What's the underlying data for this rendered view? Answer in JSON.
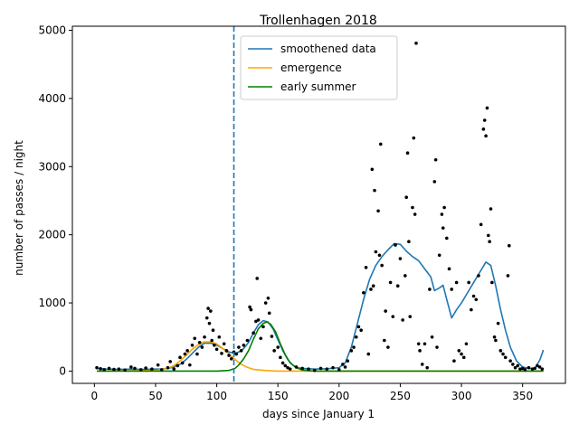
{
  "chart_data": {
    "type": "scatter",
    "title": "Trollenhagen 2018",
    "xlabel": "days since January 1",
    "ylabel": "number of passes / night",
    "xlim": [
      -18,
      385
    ],
    "ylim": [
      -180,
      5060
    ],
    "xticks": [
      0,
      50,
      100,
      150,
      200,
      250,
      300,
      350
    ],
    "yticks": [
      0,
      1000,
      2000,
      3000,
      4000,
      5000
    ],
    "grid": false,
    "legend_position": "top-center",
    "vline": {
      "x": 114,
      "style": "dashed",
      "color": "#1f77b4"
    },
    "series": [
      {
        "name": "smoothened data",
        "kind": "line",
        "color": "#1f77b4",
        "points": [
          [
            2,
            40
          ],
          [
            10,
            30
          ],
          [
            20,
            25
          ],
          [
            30,
            30
          ],
          [
            40,
            25
          ],
          [
            50,
            30
          ],
          [
            55,
            30
          ],
          [
            60,
            40
          ],
          [
            65,
            60
          ],
          [
            70,
            100
          ],
          [
            75,
            170
          ],
          [
            80,
            260
          ],
          [
            85,
            350
          ],
          [
            90,
            410
          ],
          [
            95,
            410
          ],
          [
            100,
            380
          ],
          [
            105,
            330
          ],
          [
            110,
            280
          ],
          [
            115,
            260
          ],
          [
            118,
            280
          ],
          [
            122,
            330
          ],
          [
            126,
            420
          ],
          [
            130,
            560
          ],
          [
            134,
            680
          ],
          [
            138,
            740
          ],
          [
            142,
            720
          ],
          [
            146,
            620
          ],
          [
            150,
            460
          ],
          [
            154,
            300
          ],
          [
            158,
            170
          ],
          [
            162,
            90
          ],
          [
            166,
            50
          ],
          [
            170,
            40
          ],
          [
            180,
            30
          ],
          [
            190,
            35
          ],
          [
            200,
            50
          ],
          [
            205,
            120
          ],
          [
            210,
            350
          ],
          [
            215,
            700
          ],
          [
            220,
            1050
          ],
          [
            225,
            1350
          ],
          [
            230,
            1550
          ],
          [
            235,
            1680
          ],
          [
            240,
            1780
          ],
          [
            245,
            1870
          ],
          [
            250,
            1860
          ],
          [
            255,
            1760
          ],
          [
            260,
            1680
          ],
          [
            265,
            1620
          ],
          [
            270,
            1500
          ],
          [
            275,
            1380
          ],
          [
            278,
            1180
          ],
          [
            282,
            1220
          ],
          [
            285,
            1260
          ],
          [
            288,
            1050
          ],
          [
            292,
            780
          ],
          [
            296,
            900
          ],
          [
            300,
            1000
          ],
          [
            305,
            1150
          ],
          [
            310,
            1300
          ],
          [
            315,
            1450
          ],
          [
            320,
            1600
          ],
          [
            324,
            1550
          ],
          [
            328,
            1250
          ],
          [
            332,
            900
          ],
          [
            336,
            600
          ],
          [
            340,
            350
          ],
          [
            345,
            150
          ],
          [
            350,
            60
          ],
          [
            355,
            40
          ],
          [
            360,
            40
          ],
          [
            364,
            160
          ],
          [
            367,
            310
          ]
        ]
      },
      {
        "name": "emergence",
        "kind": "line",
        "color": "#ffa500",
        "points": [
          [
            2,
            0
          ],
          [
            50,
            8
          ],
          [
            60,
            40
          ],
          [
            65,
            80
          ],
          [
            70,
            150
          ],
          [
            75,
            230
          ],
          [
            80,
            320
          ],
          [
            85,
            390
          ],
          [
            90,
            430
          ],
          [
            95,
            430
          ],
          [
            100,
            400
          ],
          [
            105,
            330
          ],
          [
            110,
            250
          ],
          [
            115,
            170
          ],
          [
            120,
            100
          ],
          [
            125,
            55
          ],
          [
            130,
            25
          ],
          [
            140,
            8
          ],
          [
            150,
            0
          ],
          [
            367,
            0
          ]
        ]
      },
      {
        "name": "early summer",
        "kind": "line",
        "color": "#008000",
        "points": [
          [
            2,
            0
          ],
          [
            100,
            0
          ],
          [
            110,
            10
          ],
          [
            115,
            40
          ],
          [
            118,
            90
          ],
          [
            122,
            180
          ],
          [
            126,
            300
          ],
          [
            130,
            470
          ],
          [
            134,
            620
          ],
          [
            138,
            700
          ],
          [
            141,
            720
          ],
          [
            144,
            690
          ],
          [
            148,
            580
          ],
          [
            152,
            400
          ],
          [
            156,
            240
          ],
          [
            160,
            120
          ],
          [
            165,
            50
          ],
          [
            170,
            15
          ],
          [
            180,
            0
          ],
          [
            367,
            0
          ]
        ]
      },
      {
        "name": "",
        "kind": "points",
        "color": "#000000",
        "points": [
          [
            2,
            50
          ],
          [
            5,
            35
          ],
          [
            8,
            20
          ],
          [
            12,
            40
          ],
          [
            16,
            25
          ],
          [
            20,
            30
          ],
          [
            25,
            15
          ],
          [
            30,
            60
          ],
          [
            33,
            40
          ],
          [
            38,
            20
          ],
          [
            42,
            45
          ],
          [
            47,
            30
          ],
          [
            52,
            90
          ],
          [
            55,
            20
          ],
          [
            60,
            50
          ],
          [
            62,
            140
          ],
          [
            65,
            30
          ],
          [
            68,
            80
          ],
          [
            70,
            200
          ],
          [
            72,
            120
          ],
          [
            74,
            250
          ],
          [
            76,
            300
          ],
          [
            78,
            90
          ],
          [
            80,
            380
          ],
          [
            82,
            480
          ],
          [
            84,
            250
          ],
          [
            86,
            420
          ],
          [
            88,
            350
          ],
          [
            90,
            500
          ],
          [
            92,
            780
          ],
          [
            93,
            920
          ],
          [
            94,
            700
          ],
          [
            95,
            880
          ],
          [
            96,
            450
          ],
          [
            97,
            600
          ],
          [
            98,
            380
          ],
          [
            100,
            320
          ],
          [
            102,
            500
          ],
          [
            104,
            260
          ],
          [
            106,
            400
          ],
          [
            108,
            300
          ],
          [
            110,
            230
          ],
          [
            112,
            180
          ],
          [
            114,
            280
          ],
          [
            116,
            250
          ],
          [
            118,
            350
          ],
          [
            120,
            300
          ],
          [
            122,
            380
          ],
          [
            125,
            450
          ],
          [
            127,
            940
          ],
          [
            128,
            900
          ],
          [
            130,
            560
          ],
          [
            132,
            730
          ],
          [
            133,
            1360
          ],
          [
            134,
            750
          ],
          [
            136,
            480
          ],
          [
            138,
            650
          ],
          [
            140,
            1000
          ],
          [
            142,
            1070
          ],
          [
            143,
            850
          ],
          [
            145,
            510
          ],
          [
            147,
            300
          ],
          [
            150,
            350
          ],
          [
            152,
            200
          ],
          [
            154,
            120
          ],
          [
            156,
            80
          ],
          [
            158,
            50
          ],
          [
            160,
            30
          ],
          [
            165,
            60
          ],
          [
            170,
            40
          ],
          [
            175,
            30
          ],
          [
            180,
            10
          ],
          [
            185,
            40
          ],
          [
            190,
            30
          ],
          [
            195,
            50
          ],
          [
            200,
            20
          ],
          [
            203,
            100
          ],
          [
            205,
            60
          ],
          [
            207,
            150
          ],
          [
            210,
            300
          ],
          [
            212,
            350
          ],
          [
            214,
            500
          ],
          [
            216,
            650
          ],
          [
            218,
            600
          ],
          [
            220,
            1150
          ],
          [
            222,
            1520
          ],
          [
            224,
            250
          ],
          [
            226,
            1200
          ],
          [
            227,
            2960
          ],
          [
            228,
            1250
          ],
          [
            229,
            2650
          ],
          [
            230,
            1750
          ],
          [
            232,
            2350
          ],
          [
            233,
            1700
          ],
          [
            234,
            3330
          ],
          [
            235,
            1550
          ],
          [
            237,
            450
          ],
          [
            238,
            880
          ],
          [
            240,
            350
          ],
          [
            242,
            1300
          ],
          [
            244,
            800
          ],
          [
            246,
            1850
          ],
          [
            248,
            1250
          ],
          [
            250,
            1650
          ],
          [
            252,
            750
          ],
          [
            254,
            1400
          ],
          [
            255,
            2550
          ],
          [
            256,
            3200
          ],
          [
            257,
            1900
          ],
          [
            258,
            800
          ],
          [
            260,
            2400
          ],
          [
            261,
            3420
          ],
          [
            262,
            2300
          ],
          [
            263,
            4810
          ],
          [
            265,
            400
          ],
          [
            266,
            300
          ],
          [
            268,
            100
          ],
          [
            270,
            400
          ],
          [
            272,
            50
          ],
          [
            274,
            1200
          ],
          [
            276,
            500
          ],
          [
            278,
            2780
          ],
          [
            279,
            3100
          ],
          [
            280,
            350
          ],
          [
            282,
            1700
          ],
          [
            284,
            2300
          ],
          [
            285,
            2100
          ],
          [
            286,
            2400
          ],
          [
            288,
            1950
          ],
          [
            290,
            1500
          ],
          [
            292,
            1200
          ],
          [
            294,
            150
          ],
          [
            296,
            1300
          ],
          [
            298,
            300
          ],
          [
            300,
            250
          ],
          [
            302,
            200
          ],
          [
            304,
            400
          ],
          [
            306,
            1300
          ],
          [
            308,
            900
          ],
          [
            310,
            1100
          ],
          [
            312,
            1050
          ],
          [
            314,
            1400
          ],
          [
            316,
            2150
          ],
          [
            318,
            3550
          ],
          [
            319,
            3680
          ],
          [
            320,
            3450
          ],
          [
            321,
            3860
          ],
          [
            322,
            1990
          ],
          [
            323,
            1900
          ],
          [
            324,
            2380
          ],
          [
            325,
            1300
          ],
          [
            327,
            500
          ],
          [
            328,
            450
          ],
          [
            330,
            700
          ],
          [
            332,
            300
          ],
          [
            334,
            250
          ],
          [
            336,
            200
          ],
          [
            338,
            1400
          ],
          [
            339,
            1840
          ],
          [
            340,
            150
          ],
          [
            342,
            100
          ],
          [
            344,
            50
          ],
          [
            346,
            80
          ],
          [
            348,
            30
          ],
          [
            350,
            40
          ],
          [
            352,
            20
          ],
          [
            355,
            50
          ],
          [
            358,
            30
          ],
          [
            360,
            40
          ],
          [
            362,
            80
          ],
          [
            364,
            60
          ],
          [
            366,
            30
          ]
        ]
      }
    ]
  }
}
